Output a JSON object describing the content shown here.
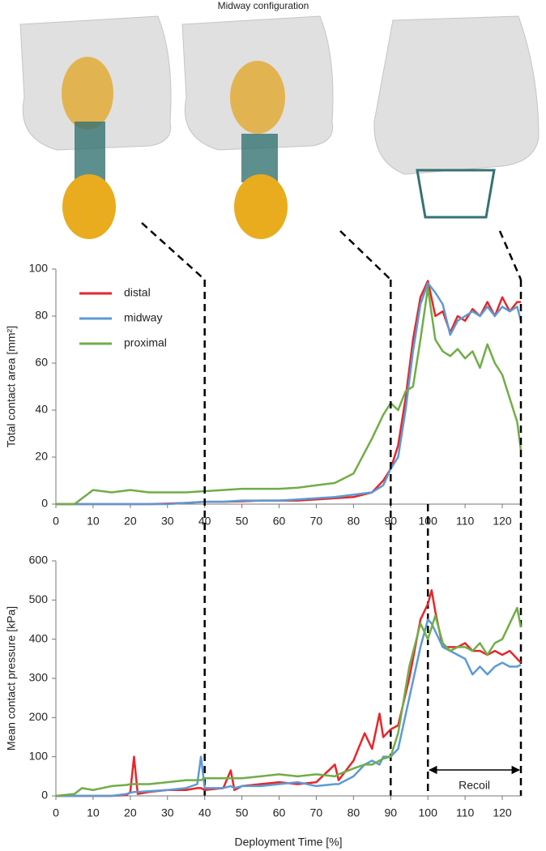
{
  "header": {
    "title": "Midway configuration"
  },
  "chart_data": [
    {
      "type": "line",
      "y_label": "Total contact area [mm²]",
      "x": [
        0,
        5,
        10,
        15,
        20,
        25,
        30,
        35,
        40,
        45,
        50,
        55,
        60,
        65,
        70,
        75,
        80,
        85,
        88,
        90,
        92,
        94,
        96,
        98,
        100,
        102,
        104,
        106,
        108,
        110,
        112,
        114,
        116,
        118,
        120,
        122,
        124,
        125
      ],
      "series": [
        {
          "name": "distal",
          "color": "#e8262a",
          "values": [
            0,
            0,
            0,
            0,
            0,
            0,
            0.2,
            0.5,
            1,
            1,
            1.2,
            1.5,
            1.5,
            1.5,
            2,
            2.5,
            3,
            5,
            10,
            15,
            25,
            45,
            70,
            88,
            95,
            80,
            82,
            73,
            80,
            78,
            83,
            80,
            86,
            80,
            88,
            82,
            86,
            86
          ]
        },
        {
          "name": "midway",
          "color": "#5b9bd5",
          "values": [
            0,
            0,
            0,
            0,
            0,
            0,
            0,
            0.5,
            1,
            1,
            1.5,
            1.5,
            1.5,
            2,
            2.5,
            3,
            4,
            5,
            8,
            15,
            20,
            40,
            65,
            85,
            94,
            90,
            85,
            72,
            78,
            80,
            82,
            80,
            84,
            80,
            84,
            82,
            84,
            78
          ]
        },
        {
          "name": "proximal",
          "color": "#70ad47",
          "values": [
            0,
            0,
            6,
            5,
            6,
            5,
            5,
            5,
            5.5,
            6,
            6.5,
            6.5,
            6.5,
            7,
            8,
            9,
            13,
            28,
            38,
            43,
            40,
            48,
            50,
            70,
            92,
            70,
            65,
            63,
            66,
            62,
            65,
            58,
            68,
            60,
            55,
            45,
            35,
            23
          ]
        }
      ],
      "xlim": [
        0,
        125
      ],
      "xticks": [
        0,
        10,
        20,
        30,
        40,
        50,
        60,
        70,
        80,
        90,
        100,
        110,
        120
      ],
      "ylim": [
        0,
        100
      ],
      "yticks": [
        0,
        20,
        40,
        60,
        80,
        100
      ],
      "legend": "upper-left",
      "vlines": [
        40,
        90,
        100,
        125
      ]
    },
    {
      "type": "line",
      "y_label": "Mean contact pressure [kPa]",
      "x_label": "Deployment Time [%]",
      "x": [
        0,
        5,
        7,
        10,
        15,
        19,
        20,
        21,
        22,
        25,
        30,
        35,
        38,
        39,
        40,
        45,
        47,
        48,
        50,
        55,
        60,
        65,
        70,
        75,
        76,
        80,
        83,
        85,
        87,
        88,
        90,
        92,
        95,
        98,
        100,
        101,
        102,
        104,
        106,
        108,
        110,
        112,
        114,
        116,
        118,
        120,
        122,
        124,
        125
      ],
      "series": [
        {
          "name": "distal",
          "color": "#e8262a",
          "values": [
            0,
            0,
            0,
            0,
            0,
            2,
            10,
            100,
            5,
            10,
            15,
            15,
            20,
            20,
            15,
            20,
            65,
            15,
            25,
            30,
            35,
            30,
            35,
            80,
            40,
            90,
            160,
            120,
            210,
            150,
            170,
            180,
            300,
            450,
            490,
            525,
            470,
            380,
            380,
            380,
            390,
            370,
            370,
            360,
            370,
            360,
            370,
            350,
            340
          ]
        },
        {
          "name": "midway",
          "color": "#5b9bd5",
          "values": [
            0,
            0,
            0,
            0,
            0,
            5,
            8,
            10,
            10,
            12,
            15,
            20,
            30,
            100,
            20,
            20,
            25,
            20,
            25,
            25,
            30,
            35,
            25,
            30,
            30,
            50,
            80,
            90,
            80,
            100,
            100,
            120,
            250,
            380,
            450,
            440,
            420,
            380,
            370,
            360,
            350,
            310,
            330,
            310,
            330,
            340,
            330,
            330,
            335
          ]
        },
        {
          "name": "proximal",
          "color": "#70ad47",
          "values": [
            0,
            5,
            20,
            15,
            25,
            28,
            30,
            30,
            30,
            30,
            35,
            40,
            40,
            40,
            45,
            45,
            45,
            45,
            45,
            50,
            55,
            50,
            55,
            50,
            55,
            70,
            80,
            80,
            90,
            95,
            100,
            160,
            330,
            440,
            400,
            430,
            460,
            390,
            370,
            380,
            380,
            370,
            390,
            360,
            390,
            400,
            440,
            480,
            430
          ]
        }
      ],
      "xlim": [
        0,
        125
      ],
      "xticks": [
        0,
        10,
        20,
        30,
        40,
        50,
        60,
        70,
        80,
        90,
        100,
        110,
        120
      ],
      "ylim": [
        0,
        600
      ],
      "yticks": [
        0,
        100,
        200,
        300,
        400,
        500,
        600
      ],
      "annotation": {
        "text": "Recoil",
        "x": [
          100,
          125
        ]
      }
    }
  ]
}
